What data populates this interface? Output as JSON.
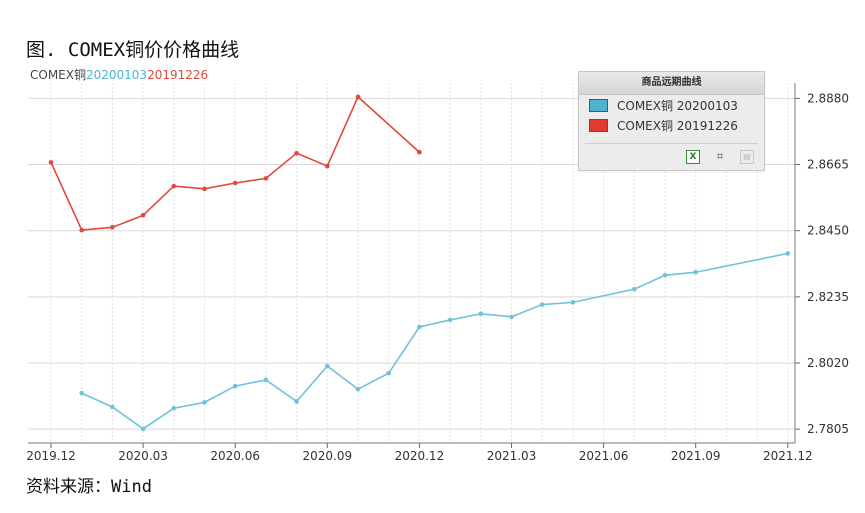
{
  "figure_title": "图. COMEX铜价价格曲线",
  "series_header": {
    "base": "COMEX铜",
    "date1": "20200103",
    "date2": "20191226"
  },
  "source": "资料来源：Wind",
  "legend": {
    "title": "商品远期曲线",
    "items": [
      {
        "label": "COMEX铜 20200103",
        "color": "#4fb3cf"
      },
      {
        "label": "COMEX铜 20191226",
        "color": "#e23b2e"
      }
    ],
    "tools": [
      "excel-export-icon",
      "crop-icon",
      "disabled-tool-icon"
    ],
    "tool_glyphs": {
      "excel": "X",
      "crop": "⌗",
      "disabled": "▤"
    }
  },
  "chart_data": {
    "type": "line",
    "x_tick_labels": [
      "2019.12",
      "2020.03",
      "2020.06",
      "2020.09",
      "2020.12",
      "2021.03",
      "2021.06",
      "2021.09",
      "2021.12"
    ],
    "y_ticks": [
      2.7805,
      2.802,
      2.8235,
      2.845,
      2.8665,
      2.888
    ],
    "y_tick_labels": [
      "2.7805",
      "2.8020",
      "2.8235",
      "2.8450",
      "2.8665",
      "2.8880"
    ],
    "ylim": [
      2.776,
      2.893
    ],
    "grid": true,
    "legend_position": "top-right",
    "series": [
      {
        "name": "COMEX铜 20200103",
        "color": "#6ec3db",
        "points": [
          [
            "2020-01",
            2.7922
          ],
          [
            "2020-02",
            2.7877
          ],
          [
            "2020-03",
            2.7806
          ],
          [
            "2020-04",
            2.7873
          ],
          [
            "2020-05",
            2.7892
          ],
          [
            "2020-06",
            2.7945
          ],
          [
            "2020-07",
            2.7965
          ],
          [
            "2020-08",
            2.7895
          ],
          [
            "2020-09",
            2.801
          ],
          [
            "2020-10",
            2.7935
          ],
          [
            "2020-11",
            2.7987
          ],
          [
            "2020-12",
            2.8137
          ],
          [
            "2021-01",
            2.816
          ],
          [
            "2021-02",
            2.818
          ],
          [
            "2021-03",
            2.817
          ],
          [
            "2021-04",
            2.821
          ],
          [
            "2021-05",
            2.8217
          ],
          [
            "2021-07",
            2.826
          ],
          [
            "2021-08",
            2.8305
          ],
          [
            "2021-09",
            2.8315
          ],
          [
            "2021-12",
            2.8376
          ]
        ]
      },
      {
        "name": "COMEX铜 20191226",
        "color": "#e0493c",
        "points": [
          [
            "2019-12",
            2.8672
          ],
          [
            "2020-01",
            2.8452
          ],
          [
            "2020-02",
            2.8461
          ],
          [
            "2020-03",
            2.85
          ],
          [
            "2020-04",
            2.8595
          ],
          [
            "2020-05",
            2.8586
          ],
          [
            "2020-06",
            2.8605
          ],
          [
            "2020-07",
            2.862
          ],
          [
            "2020-08",
            2.8702
          ],
          [
            "2020-09",
            2.866
          ],
          [
            "2020-10",
            2.8885
          ],
          [
            "2020-12",
            2.8705
          ]
        ]
      }
    ]
  }
}
